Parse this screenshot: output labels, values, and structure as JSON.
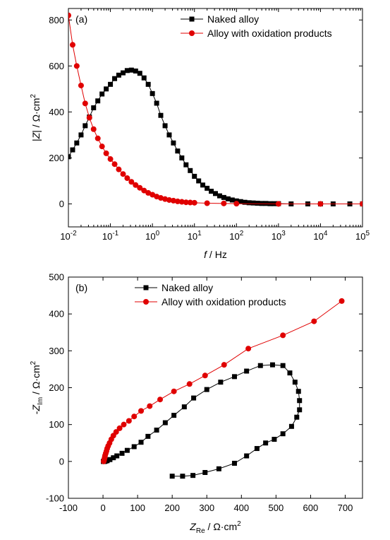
{
  "colors": {
    "naked": "#000000",
    "oxidized": "#e00000"
  },
  "chart_data": [
    {
      "type": "scatter",
      "panel_label": "(a)",
      "xscale": "log",
      "xlim": [
        0.01,
        100000
      ],
      "ylim": [
        -100,
        850
      ],
      "xticks": [
        0.01,
        0.1,
        1,
        10,
        100,
        1000,
        10000,
        100000
      ],
      "xtick_labels": [
        {
          "base": "10",
          "exp": "-2"
        },
        {
          "base": "10",
          "exp": "-1"
        },
        {
          "base": "10",
          "exp": "0"
        },
        {
          "base": "10",
          "exp": "1"
        },
        {
          "base": "10",
          "exp": "2"
        },
        {
          "base": "10",
          "exp": "3"
        },
        {
          "base": "10",
          "exp": "4"
        },
        {
          "base": "10",
          "exp": "5"
        }
      ],
      "yticks": [
        0,
        200,
        400,
        600,
        800
      ],
      "ytick_labels": [
        "0",
        "200",
        "400",
        "600",
        "800"
      ],
      "xlabel": {
        "var": "f",
        "unit": " / Hz"
      },
      "ylabel": {
        "pre": "|",
        "var": "Z",
        "post": "| / Ω·cm",
        "sup": "2"
      },
      "legend": {
        "position": "top-right"
      },
      "series": [
        {
          "name": "Naked alloy",
          "color_key": "naked",
          "marker": "square",
          "x": [
            0.01,
            0.0126,
            0.0158,
            0.02,
            0.0251,
            0.0316,
            0.0398,
            0.0501,
            0.0631,
            0.0794,
            0.1,
            0.126,
            0.158,
            0.2,
            0.251,
            0.316,
            0.398,
            0.501,
            0.631,
            0.794,
            1,
            1.26,
            1.58,
            2,
            2.51,
            3.16,
            3.98,
            5.01,
            6.31,
            7.94,
            10,
            12.6,
            15.8,
            20,
            25.1,
            31.6,
            39.8,
            50.1,
            63.1,
            79.4,
            100,
            126,
            158,
            200,
            251,
            316,
            398,
            501,
            631,
            794,
            1000,
            2000,
            5000,
            10000,
            20000,
            50000,
            100000
          ],
          "y": [
            205,
            235,
            265,
            300,
            340,
            378,
            418,
            448,
            478,
            500,
            520,
            545,
            560,
            570,
            580,
            582,
            578,
            568,
            548,
            520,
            480,
            438,
            385,
            340,
            300,
            265,
            230,
            200,
            170,
            145,
            120,
            100,
            82,
            68,
            55,
            45,
            35,
            28,
            22,
            17,
            13,
            10,
            7,
            5,
            4,
            3,
            2,
            2,
            1,
            1,
            1,
            0,
            0,
            0,
            0,
            0,
            0
          ]
        },
        {
          "name": "Alloy with oxidation products",
          "color_key": "oxidized",
          "marker": "circle",
          "x": [
            0.01,
            0.0126,
            0.0158,
            0.02,
            0.0251,
            0.0316,
            0.0398,
            0.0501,
            0.0631,
            0.0794,
            0.1,
            0.126,
            0.158,
            0.2,
            0.251,
            0.316,
            0.398,
            0.501,
            0.631,
            0.794,
            1,
            1.26,
            1.58,
            2,
            2.51,
            3.16,
            3.98,
            5.01,
            6.31,
            7.94,
            10,
            20,
            50,
            100,
            1000,
            10000,
            100000
          ],
          "y": [
            820,
            692,
            600,
            515,
            437,
            375,
            325,
            285,
            250,
            220,
            195,
            173,
            150,
            130,
            112,
            96,
            82,
            70,
            58,
            48,
            40,
            32,
            26,
            21,
            17,
            14,
            11,
            9,
            7,
            6,
            5,
            3,
            2,
            1,
            0,
            0,
            0
          ]
        }
      ]
    },
    {
      "type": "scatter",
      "panel_label": "(b)",
      "xlim": [
        -100,
        750
      ],
      "ylim": [
        -100,
        500
      ],
      "xticks": [
        -100,
        0,
        100,
        200,
        300,
        400,
        500,
        600,
        700
      ],
      "xtick_labels": [
        "-100",
        "0",
        "100",
        "200",
        "300",
        "400",
        "500",
        "600",
        "700"
      ],
      "yticks": [
        -100,
        0,
        100,
        200,
        300,
        400,
        500
      ],
      "ytick_labels": [
        "-100",
        "0",
        "100",
        "200",
        "300",
        "400",
        "500"
      ],
      "xlabel": {
        "var": "Z",
        "sub": "Re",
        "post": " / Ω·cm",
        "sup": "2"
      },
      "ylabel": {
        "pre": "-",
        "var": "Z",
        "sub": "Im",
        "post": " / Ω·cm",
        "sup": "2"
      },
      "legend": {
        "position": "top-left"
      },
      "series": [
        {
          "name": "Naked alloy",
          "color_key": "naked",
          "marker": "square",
          "line": true,
          "x": [
            200,
            230,
            260,
            295,
            335,
            380,
            415,
            445,
            470,
            495,
            520,
            545,
            560,
            568,
            568,
            565,
            555,
            540,
            520,
            490,
            455,
            415,
            380,
            340,
            300,
            262,
            235,
            205,
            180,
            155,
            130,
            110,
            90,
            70,
            55,
            40,
            30,
            20,
            12,
            8,
            5,
            3,
            2,
            1
          ],
          "y": [
            -40,
            -40,
            -38,
            -30,
            -20,
            -5,
            15,
            35,
            50,
            60,
            75,
            95,
            120,
            140,
            165,
            190,
            215,
            240,
            260,
            262,
            260,
            245,
            230,
            215,
            195,
            172,
            148,
            125,
            105,
            85,
            68,
            52,
            40,
            30,
            22,
            15,
            10,
            5,
            2,
            1,
            0,
            0,
            0,
            0
          ]
        },
        {
          "name": "Alloy with oxidation products",
          "color_key": "oxidized",
          "marker": "circle",
          "line": true,
          "x": [
            690,
            610,
            520,
            420,
            350,
            295,
            250,
            205,
            165,
            135,
            110,
            90,
            75,
            60,
            48,
            38,
            30,
            24,
            19,
            15,
            12,
            10,
            8,
            6,
            5,
            4,
            3,
            2
          ],
          "y": [
            435,
            380,
            342,
            306,
            262,
            233,
            210,
            190,
            168,
            150,
            137,
            122,
            110,
            100,
            90,
            80,
            70,
            60,
            50,
            42,
            35,
            28,
            22,
            16,
            11,
            7,
            3,
            0
          ]
        }
      ]
    }
  ]
}
